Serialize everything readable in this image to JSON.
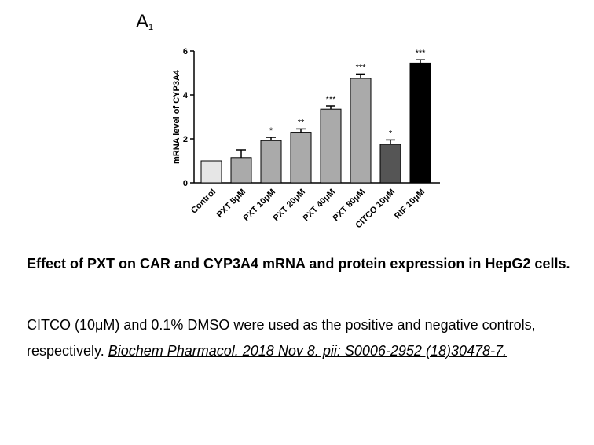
{
  "panel": {
    "letter": "A",
    "sub": "1"
  },
  "chart_data": {
    "type": "bar",
    "ylabel": "mRNA level of CYP3A4",
    "xlabel": "",
    "title": "",
    "ylim": [
      0,
      6
    ],
    "yticks": [
      0,
      2,
      4,
      6
    ],
    "categories": [
      "Control",
      "PXT 5μM",
      "PXT 10μM",
      "PXT 20μM",
      "PXT 40μM",
      "PXT 80μM",
      "CITCO 10μM",
      "RIF 10μM"
    ],
    "values": [
      1.0,
      1.15,
      1.92,
      2.3,
      3.35,
      4.75,
      1.75,
      5.45
    ],
    "errors": [
      0.0,
      0.35,
      0.15,
      0.15,
      0.15,
      0.2,
      0.2,
      0.15
    ],
    "significance": [
      "",
      "",
      "*",
      "**",
      "***",
      "***",
      "*",
      "***"
    ],
    "colors": [
      "#e6e6e6",
      "#aaaaaa",
      "#aaaaaa",
      "#aaaaaa",
      "#aaaaaa",
      "#aaaaaa",
      "#555555",
      "#000000"
    ]
  },
  "caption": {
    "title": "Effect of PXT on CAR and CYP3A4 mRNA and protein expression in HepG2 cells.",
    "body": "CITCO (10μM) and 0.1% DMSO were used as the positive and negative controls, respectively. ",
    "link": "Biochem Pharmacol. 2018 Nov 8. pii: S0006-2952 (18)30478-7."
  }
}
